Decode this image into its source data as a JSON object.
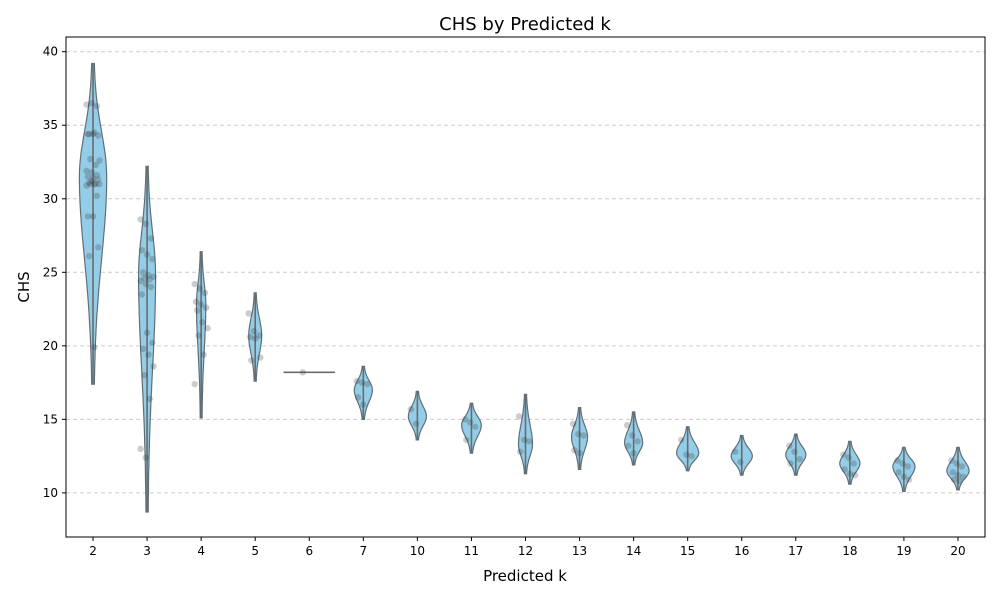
{
  "chart_data": {
    "type": "violin",
    "title": "CHS by Predicted k",
    "xlabel": "Predicted k",
    "ylabel": "CHS",
    "ylim": [
      7,
      41
    ],
    "yticks": [
      10,
      15,
      20,
      25,
      30,
      35,
      40
    ],
    "grid": "y",
    "categories": [
      "2",
      "3",
      "4",
      "5",
      "6",
      "7",
      "10",
      "11",
      "12",
      "13",
      "14",
      "15",
      "16",
      "17",
      "18",
      "19",
      "20"
    ],
    "color": "#8ecae6",
    "groups": [
      {
        "k": "2",
        "min": 17.4,
        "max": 39.2,
        "peak": 31.5,
        "peak_width": 0.5,
        "points": [
          36.4,
          36.5,
          36.3,
          34.4,
          34.4,
          34.3,
          34.4,
          34.5,
          32.6,
          32.7,
          32.3,
          31.9,
          31.8,
          31.6,
          31.5,
          31.4,
          31.3,
          31.1,
          31.0,
          31.0,
          31.0,
          31.0,
          30.9,
          31.2,
          30.2,
          28.8,
          28.8,
          26.7,
          26.1,
          19.9
        ]
      },
      {
        "k": "3",
        "min": 8.7,
        "max": 32.2,
        "peak": 24.8,
        "peak_width": 0.3,
        "points": [
          28.6,
          28.3,
          27.3,
          26.5,
          26.2,
          25.9,
          25.0,
          24.8,
          24.7,
          24.6,
          24.5,
          24.4,
          24.2,
          24.0,
          23.5,
          20.9,
          20.2,
          19.8,
          19.4,
          18.6,
          18.0,
          16.4,
          13.0,
          12.4
        ]
      },
      {
        "k": "4",
        "min": 15.1,
        "max": 26.4,
        "peak": 22.8,
        "peak_width": 0.15,
        "points": [
          24.2,
          23.9,
          23.6,
          23.0,
          22.8,
          22.6,
          22.4,
          21.6,
          21.2,
          20.7,
          19.4,
          17.4
        ]
      },
      {
        "k": "5",
        "min": 17.6,
        "max": 23.6,
        "peak": 20.7,
        "peak_width": 0.22,
        "points": [
          22.2,
          21.0,
          20.7,
          20.6,
          20.5,
          19.2,
          19.0
        ]
      },
      {
        "k": "6",
        "min": 18.2,
        "max": 18.2,
        "peak": 18.2,
        "peak_width": 0.0,
        "points": [
          18.2
        ]
      },
      {
        "k": "7",
        "min": 15.0,
        "max": 18.6,
        "peak": 17.0,
        "peak_width": 0.32,
        "points": [
          17.6,
          17.5,
          17.4,
          16.5,
          16.0
        ]
      },
      {
        "k": "10",
        "min": 13.6,
        "max": 16.9,
        "peak": 15.2,
        "peak_width": 0.32,
        "points": [
          15.7,
          14.7
        ]
      },
      {
        "k": "11",
        "min": 12.7,
        "max": 16.1,
        "peak": 14.6,
        "peak_width": 0.35,
        "points": [
          15.0,
          14.8,
          14.5,
          13.6
        ]
      },
      {
        "k": "12",
        "min": 11.3,
        "max": 16.7,
        "peak": 13.3,
        "peak_width": 0.24,
        "points": [
          15.2,
          13.6,
          13.5,
          12.8
        ]
      },
      {
        "k": "13",
        "min": 11.6,
        "max": 15.8,
        "peak": 13.8,
        "peak_width": 0.28,
        "points": [
          14.7,
          14.0,
          13.9,
          12.9,
          12.7
        ]
      },
      {
        "k": "14",
        "min": 11.9,
        "max": 15.5,
        "peak": 13.4,
        "peak_width": 0.32,
        "points": [
          14.6,
          13.9,
          13.5,
          13.2,
          12.7
        ]
      },
      {
        "k": "15",
        "min": 11.5,
        "max": 14.5,
        "peak": 12.7,
        "peak_width": 0.4,
        "points": [
          13.6,
          12.6,
          12.5
        ]
      },
      {
        "k": "16",
        "min": 11.2,
        "max": 13.9,
        "peak": 12.5,
        "peak_width": 0.38,
        "points": [
          12.8,
          12.1
        ]
      },
      {
        "k": "17",
        "min": 11.2,
        "max": 14.0,
        "peak": 12.6,
        "peak_width": 0.36,
        "points": [
          13.2,
          12.8,
          12.3,
          12.0
        ]
      },
      {
        "k": "18",
        "min": 10.6,
        "max": 13.5,
        "peak": 12.0,
        "peak_width": 0.36,
        "points": [
          12.6,
          12.4,
          12.0,
          11.6,
          11.3,
          11.2
        ]
      },
      {
        "k": "19",
        "min": 10.1,
        "max": 13.1,
        "peak": 11.8,
        "peak_width": 0.4,
        "points": [
          12.2,
          12.0,
          11.8,
          11.4,
          11.1,
          10.9
        ]
      },
      {
        "k": "20",
        "min": 10.2,
        "max": 13.1,
        "peak": 11.5,
        "peak_width": 0.4,
        "points": [
          12.2,
          12.0,
          11.8,
          11.4,
          11.2,
          11.1,
          10.9,
          10.8
        ]
      }
    ]
  }
}
